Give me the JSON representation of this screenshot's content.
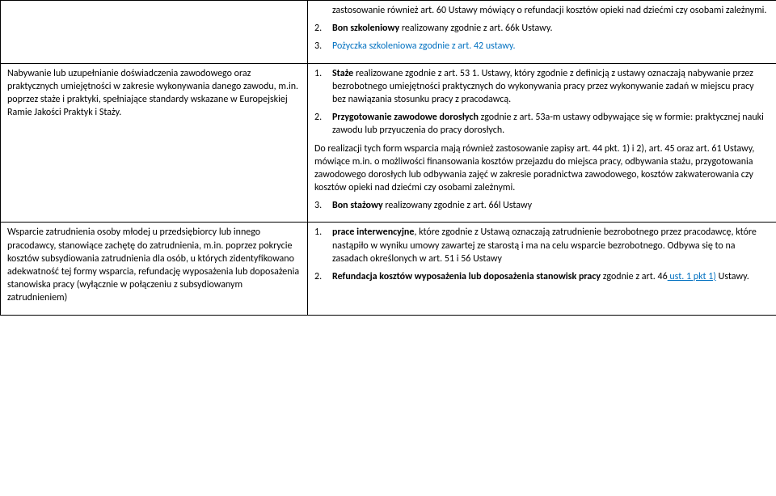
{
  "row1": {
    "r_items": [
      {
        "num": "",
        "pre": "zastosowanie również art. 60 Ustawy mówiący o refundacji kosztów opieki nad dziećmi czy osobami zależnymi.",
        "bold": "",
        "post": ""
      },
      {
        "num": "2.",
        "pre": "",
        "bold": "Bon szkoleniowy",
        "post": " realizowany zgodnie z art. 66k Ustawy."
      },
      {
        "num": "3.",
        "pre": "",
        "bold": "",
        "post": "",
        "blue": "Pożyczka szkoleniowa zgodnie z art. 42 ustawy."
      }
    ]
  },
  "row2": {
    "left": "Nabywanie lub uzupełnianie doświadczenia zawodowego oraz praktycznych umiejętności w zakresie wykonywania danego zawodu, m.in. poprzez staże i praktyki, spełniające standardy wskazane w Europejskiej Ramie Jakości Praktyk i Staży.",
    "r_items": [
      {
        "num": "1.",
        "pre": "",
        "bold": "Staże",
        "post": " realizowane zgodnie z art. 53  1. Ustawy, który zgodnie z definicją z ustawy oznaczają nabywanie przez bezrobotnego umiejętności praktycznych do wykonywania pracy przez wykonywanie zadań w miejscu pracy bez nawiązania stosunku pracy z pracodawcą."
      },
      {
        "num": "2.",
        "pre": "",
        "bold": "Przygotowanie zawodowe dorosłych",
        "post": " zgodnie z art. 53a-m ustawy odbywające się w formie: praktycznej nauki zawodu lub przyuczenia do pracy dorosłych."
      }
    ],
    "r_para": "Do realizacji tych form wsparcia mają również zastosowanie zapisy art. 44 pkt. 1) i 2), art. 45 oraz art. 61 Ustawy, mówiące m.in. o możliwości finansowania kosztów przejazdu do miejsca pracy, odbywania stażu, przygotowania zawodowego dorosłych lub odbywania zajęć  w zakresie poradnictwa zawodowego, kosztów zakwaterowania czy kosztów opieki nad dziećmi czy osobami zależnymi.",
    "r_item3": {
      "num": "3.",
      "pre": "",
      "bold": "Bon stażowy",
      "post": " realizowany zgodnie z art. 66l Ustawy"
    }
  },
  "row3": {
    "left": "Wsparcie zatrudnienia osoby młodej u przedsiębiorcy lub innego pracodawcy, stanowiące zachętę do zatrudnienia, m.in. poprzez pokrycie kosztów subsydiowania zatrudnienia dla osób, u których zidentyfikowano adekwatność tej formy wsparcia, refundację wyposażenia lub doposażenia stanowiska pracy (wyłącznie w połączeniu z subsydiowanym zatrudnieniem)",
    "r_items": [
      {
        "num": "1.",
        "pre": "",
        "bold": "prace interwencyjne",
        "post": ", które zgodnie z Ustawą oznaczają zatrudnienie bezrobotnego przez pracodawcę, które nastąpiło w wyniku umowy zawartej ze starostą i ma na celu wsparcie bezrobotnego. Odbywa się to na zasadach określonych w art. 51 i 56  Ustawy"
      },
      {
        "num": "2.",
        "pre": "",
        "bold": "Refundacja kosztów wyposażenia lub doposażenia stanowisk pracy",
        "post_a": " zgodnie z art. 46",
        "post_b": " ust. 1 pkt 1)",
        "post_c": " Ustawy."
      }
    ]
  }
}
